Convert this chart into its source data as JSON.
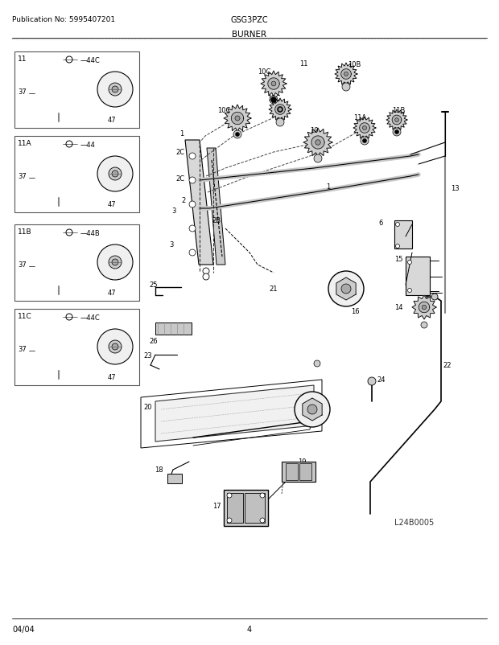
{
  "title": "BURNER",
  "pub_no": "Publication No: 5995407201",
  "model": "GSG3PZC",
  "date": "04/04",
  "page": "4",
  "watermark": "L24B0005",
  "bg_color": "#ffffff",
  "text_color": "#000000",
  "figsize": [
    6.2,
    8.03
  ],
  "dpi": 100
}
